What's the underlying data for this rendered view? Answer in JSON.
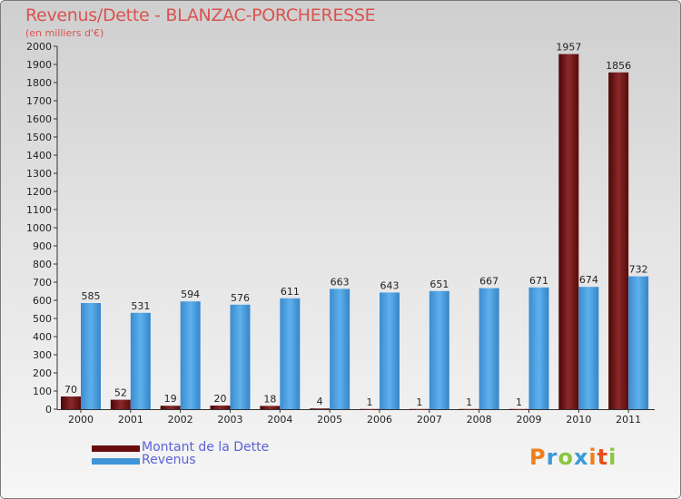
{
  "title": "Revenus/Dette - BLANZAC-PORCHERESSE",
  "subtitle": "(en milliers d'€)",
  "colors": {
    "dette": "#6b0d0d",
    "revenus": "#3f95d8",
    "title": "#d9534f",
    "legend_text": "#5b63d6"
  },
  "logo_text": "Proxiti",
  "chart_data": {
    "type": "bar",
    "title": "Revenus/Dette - BLANZAC-PORCHERESSE",
    "ylabel": "(en milliers d'€)",
    "xlabel": "",
    "ylim": [
      0,
      2000
    ],
    "yticks": [
      0,
      100,
      200,
      300,
      400,
      500,
      600,
      700,
      800,
      900,
      1000,
      1100,
      1200,
      1300,
      1400,
      1500,
      1600,
      1700,
      1800,
      1900,
      2000
    ],
    "categories": [
      "2000",
      "2001",
      "2002",
      "2003",
      "2004",
      "2005",
      "2006",
      "2007",
      "2008",
      "2009",
      "2010",
      "2011"
    ],
    "series": [
      {
        "name": "Montant de la Dette",
        "color": "#6b0d0d",
        "values": [
          70,
          52,
          19,
          20,
          18,
          4,
          1,
          1,
          1,
          1,
          1957,
          1856
        ]
      },
      {
        "name": "Revenus",
        "color": "#3f95d8",
        "values": [
          585,
          531,
          594,
          576,
          611,
          663,
          643,
          651,
          667,
          671,
          674,
          732
        ]
      }
    ],
    "legend_position": "bottom-left"
  }
}
